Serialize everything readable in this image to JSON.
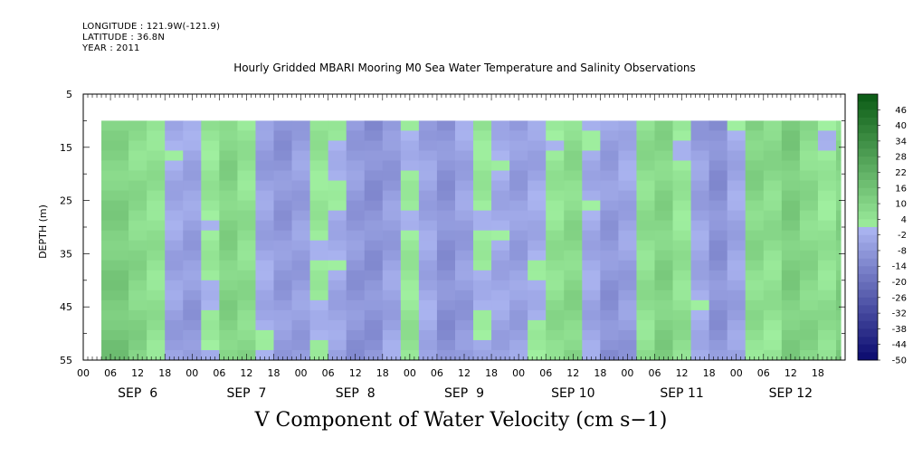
{
  "header": {
    "longitude": "LONGITUDE : 121.9W(-121.9)",
    "latitude": "LATITUDE : 36.8N",
    "year": "YEAR : 2011"
  },
  "chart_data": {
    "type": "heatmap",
    "title": "Hourly Gridded MBARI Mooring M0 Sea Water Temperature and Salinity Observations",
    "xlabel": "",
    "ylabel": "DEPTH (m)",
    "footer_title": "V Component of Water Velocity (cm s−1)",
    "y_ticks": [
      5,
      15,
      25,
      35,
      45,
      55
    ],
    "ylim": [
      5,
      55
    ],
    "y_inverted": true,
    "data_depth_range": [
      10,
      55
    ],
    "x_hour_ticks": [
      "00",
      "06",
      "12",
      "18",
      "00",
      "06",
      "12",
      "18",
      "00",
      "06",
      "12",
      "18",
      "00",
      "06",
      "12",
      "18",
      "00",
      "06",
      "12",
      "18",
      "00",
      "06",
      "12",
      "18",
      "00",
      "06",
      "12",
      "18"
    ],
    "x_day_labels": [
      "SEP  6",
      "SEP  7",
      "SEP  8",
      "SEP  9",
      "SEP 10",
      "SEP 11",
      "SEP 12"
    ],
    "x_range_hours": [
      0,
      168
    ],
    "data_time_range_hours": [
      4,
      167
    ],
    "colorbar_levels": [
      46,
      40,
      34,
      28,
      22,
      16,
      10,
      4,
      -2,
      -8,
      -14,
      -20,
      -26,
      -32,
      -38,
      -44,
      -50
    ],
    "colorbar_range": [
      -50,
      52
    ],
    "colormap": {
      "low": "#0a0a6e",
      "mid_low": "#aab4f0",
      "mid_high": "#a0f0a0",
      "high": "#0a5a14"
    },
    "column_values": [
      {
        "hour": 4,
        "value": 12
      },
      {
        "hour": 10,
        "value": 8
      },
      {
        "hour": 14,
        "value": 5
      },
      {
        "hour": 18,
        "value": -4
      },
      {
        "hour": 22,
        "value": -6
      },
      {
        "hour": 26,
        "value": 2
      },
      {
        "hour": 30,
        "value": 10
      },
      {
        "hour": 34,
        "value": 6
      },
      {
        "hour": 38,
        "value": -4
      },
      {
        "hour": 42,
        "value": -8
      },
      {
        "hour": 46,
        "value": -6
      },
      {
        "hour": 50,
        "value": 2
      },
      {
        "hour": 54,
        "value": -2
      },
      {
        "hour": 58,
        "value": -8
      },
      {
        "hour": 62,
        "value": -10
      },
      {
        "hour": 66,
        "value": -6
      },
      {
        "hour": 70,
        "value": 2
      },
      {
        "hour": 74,
        "value": -4
      },
      {
        "hour": 78,
        "value": -10
      },
      {
        "hour": 82,
        "value": -6
      },
      {
        "hour": 86,
        "value": 1
      },
      {
        "hour": 90,
        "value": -3
      },
      {
        "hour": 94,
        "value": -6
      },
      {
        "hour": 98,
        "value": -2
      },
      {
        "hour": 102,
        "value": 5
      },
      {
        "hour": 106,
        "value": 8
      },
      {
        "hour": 110,
        "value": -3
      },
      {
        "hour": 114,
        "value": -8
      },
      {
        "hour": 118,
        "value": -5
      },
      {
        "hour": 122,
        "value": 6
      },
      {
        "hour": 126,
        "value": 10
      },
      {
        "hour": 130,
        "value": 4
      },
      {
        "hour": 134,
        "value": -4
      },
      {
        "hour": 138,
        "value": -10
      },
      {
        "hour": 142,
        "value": -4
      },
      {
        "hour": 146,
        "value": 8
      },
      {
        "hour": 150,
        "value": 6
      },
      {
        "hour": 154,
        "value": 12
      },
      {
        "hour": 158,
        "value": 8
      },
      {
        "hour": 162,
        "value": 4
      },
      {
        "hour": 166,
        "value": 10
      }
    ]
  }
}
